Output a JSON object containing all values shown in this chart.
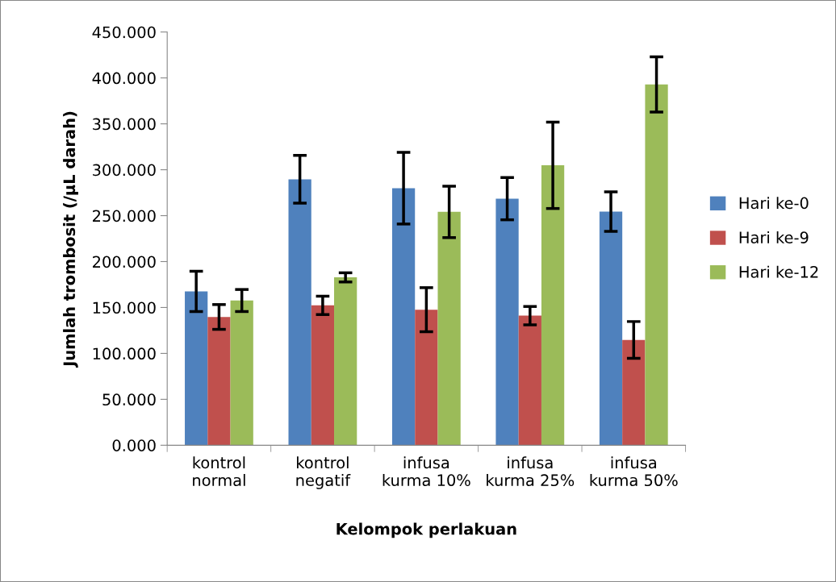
{
  "chart_data": {
    "type": "bar",
    "xlabel": "Kelompok perlakuan",
    "ylabel": "Jumlah trombosit (/µL darah)",
    "categories": [
      "kontrol\nnormal",
      "kontrol\nnegatif",
      "infusa\nkurma 10%",
      "infusa\nkurma 25%",
      "infusa\nkurma 50%"
    ],
    "series": [
      {
        "name": "Hari ke-0",
        "color": "#4f81bd",
        "values": [
          167.5,
          289.6,
          279.9,
          268.5,
          254.4
        ],
        "errors": [
          22,
          26,
          39,
          23,
          21.5
        ]
      },
      {
        "name": "Hari ke-9",
        "color": "#c0504d",
        "values": [
          139.7,
          152.3,
          147.6,
          141.1,
          114.7
        ],
        "errors": [
          13.5,
          10,
          24,
          10,
          20
        ]
      },
      {
        "name": "Hari ke-12",
        "color": "#9bbb59",
        "values": [
          157.6,
          182.8,
          254.1,
          304.8,
          392.9
        ],
        "errors": [
          12,
          5,
          28,
          47,
          30
        ]
      }
    ],
    "ylim": [
      0,
      450
    ],
    "yticks": [
      {
        "value": 0,
        "label": "0.000"
      },
      {
        "value": 50,
        "label": "50.000"
      },
      {
        "value": 100,
        "label": "100.000"
      },
      {
        "value": 150,
        "label": "150.000"
      },
      {
        "value": 200,
        "label": "200.000"
      },
      {
        "value": 250,
        "label": "250.000"
      },
      {
        "value": 300,
        "label": "300.000"
      },
      {
        "value": 350,
        "label": "350.000"
      },
      {
        "value": 400,
        "label": "400.000"
      },
      {
        "value": 450,
        "label": "450.000"
      }
    ],
    "grid": false,
    "legend": "right"
  }
}
